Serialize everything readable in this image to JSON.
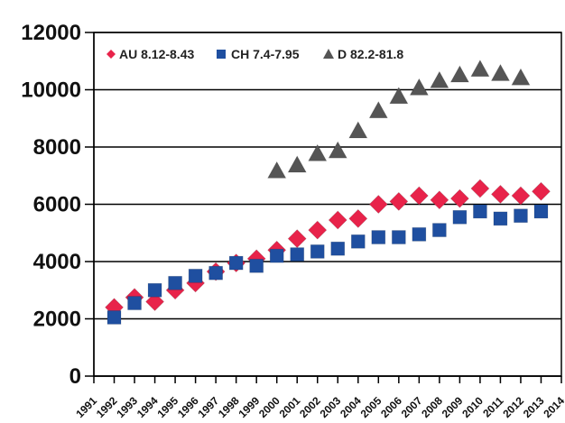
{
  "chart_data": {
    "type": "scatter",
    "title": "",
    "xlabel": "",
    "ylabel": "",
    "x": [
      1991,
      1992,
      1993,
      1994,
      1995,
      1996,
      1997,
      1998,
      1999,
      2000,
      2001,
      2002,
      2003,
      2004,
      2005,
      2006,
      2007,
      2008,
      2009,
      2010,
      2011,
      2012,
      2013,
      2014
    ],
    "xlim": [
      1991,
      2014
    ],
    "ylim": [
      0,
      12000
    ],
    "yticks": [
      0,
      2000,
      4000,
      6000,
      8000,
      10000,
      12000
    ],
    "grid": true,
    "legend_position": "top-left",
    "series": [
      {
        "name": "AU 8.12-8.43",
        "marker": "diamond",
        "color": "#e8234a",
        "values": [
          null,
          2400,
          2750,
          2600,
          3000,
          3250,
          3650,
          3950,
          4100,
          4400,
          4800,
          5100,
          5450,
          5500,
          6000,
          6100,
          6300,
          6150,
          6200,
          6550,
          6350,
          6300,
          6450,
          null
        ]
      },
      {
        "name": "CH 7.4-7.95",
        "marker": "square",
        "color": "#1f4fa0",
        "values": [
          null,
          2050,
          2550,
          3000,
          3250,
          3500,
          3600,
          3950,
          3850,
          4200,
          4250,
          4350,
          4450,
          4700,
          4850,
          4850,
          4950,
          5100,
          5550,
          5750,
          5500,
          5600,
          5750,
          null
        ]
      },
      {
        "name": "D 82.2-81.8",
        "marker": "triangle",
        "color": "#555555",
        "values": [
          null,
          null,
          null,
          null,
          null,
          null,
          null,
          null,
          null,
          7200,
          7400,
          7800,
          7900,
          8600,
          9300,
          9800,
          10100,
          10350,
          10550,
          10750,
          10600,
          10450,
          null,
          null
        ]
      }
    ]
  }
}
